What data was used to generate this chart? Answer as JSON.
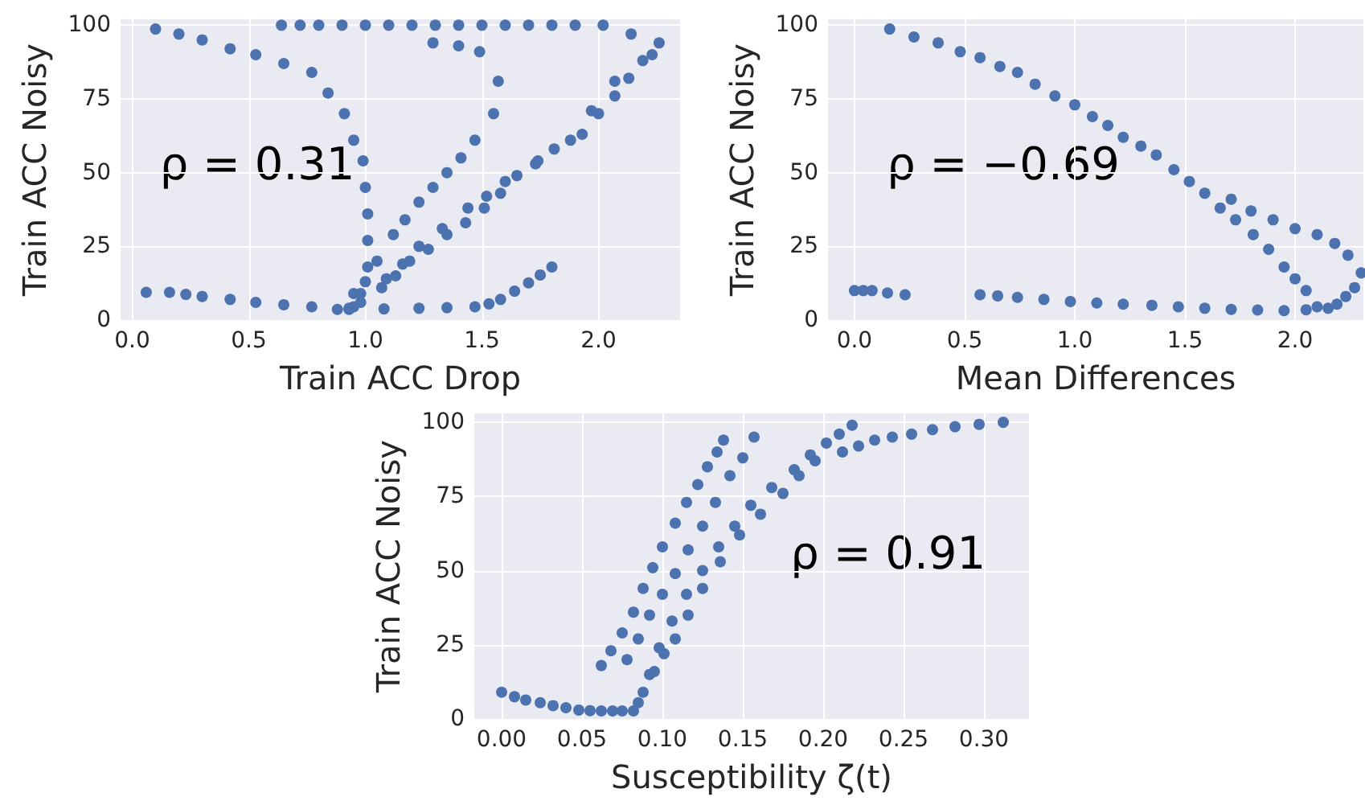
{
  "chart_data": [
    {
      "type": "scatter",
      "xlabel": "Train ACC Drop",
      "ylabel": "Train ACC Noisy",
      "grid": true,
      "marker": "circle",
      "annotations": [
        "ρ = 0.31"
      ],
      "xlim": [
        -0.05,
        2.35
      ],
      "ylim": [
        0,
        102
      ],
      "xticks": [
        {
          "value": 0,
          "label": "0.0"
        },
        {
          "value": 0.5,
          "label": "0.5"
        },
        {
          "value": 1,
          "label": "1.0"
        },
        {
          "value": 1.5,
          "label": "1.5"
        },
        {
          "value": 2,
          "label": "2.0"
        }
      ],
      "yticks": [
        0,
        25,
        50,
        75,
        100
      ],
      "series": [
        {
          "color": "#4c72b0",
          "x": [
            0.1,
            0.2,
            0.3,
            0.42,
            0.53,
            0.65,
            0.77,
            0.84,
            0.91,
            0.95,
            0.99,
            1.0,
            1.01,
            1.01,
            1.01,
            1.0,
            0.98,
            0.93,
            0.64,
            0.72,
            0.8,
            0.9,
            1.0,
            1.1,
            1.2,
            1.3,
            1.4,
            1.5,
            1.6,
            1.7,
            1.8,
            1.9,
            2.02,
            2.14,
            2.26,
            2.23,
            2.19,
            2.13,
            2.07,
            2.0,
            1.93,
            1.81,
            1.73,
            1.65,
            1.58,
            1.51,
            1.43,
            1.35,
            1.27,
            1.19,
            1.13,
            1.07,
            0.95,
            1.29,
            1.4,
            1.49,
            1.57,
            1.55,
            1.47,
            1.41,
            1.35,
            1.29,
            1.23,
            1.17,
            1.12,
            1.05,
            0.95,
            2.07,
            1.97,
            1.88,
            1.74,
            1.6,
            1.52,
            1.44,
            1.33,
            1.23,
            1.16,
            1.09,
            0.98,
            0.06,
            0.16,
            0.23,
            0.3,
            0.42,
            0.53,
            0.65,
            0.77,
            0.88,
            0.93,
            1.08,
            1.23,
            1.35,
            1.47,
            1.53,
            1.58,
            1.64,
            1.7,
            1.75,
            1.8
          ],
          "values": [
            98.7,
            97,
            95,
            92,
            90,
            87,
            84,
            77,
            70,
            61,
            54,
            45,
            36,
            27,
            18,
            13,
            9,
            4,
            100,
            100,
            100,
            100,
            100,
            100,
            100,
            100,
            100,
            100,
            100,
            100,
            100,
            100,
            100,
            97,
            94,
            90,
            88,
            82,
            76,
            70,
            63,
            58,
            53,
            49,
            43,
            38,
            33,
            29,
            24,
            20,
            15,
            11,
            4.5,
            94,
            93,
            91,
            81,
            70,
            61,
            55,
            50,
            45,
            40,
            34,
            29,
            20,
            9,
            81,
            71,
            61,
            54,
            47,
            42,
            38,
            31,
            25,
            19,
            14,
            6,
            9.4,
            9.4,
            8.7,
            8,
            7,
            6,
            5.2,
            4.5,
            3.6,
            3.6,
            3.8,
            4,
            4.2,
            4.5,
            5.5,
            7,
            9.8,
            12.6,
            15.3,
            18
          ]
        }
      ]
    },
    {
      "type": "scatter",
      "xlabel": "Mean Differences",
      "ylabel": "Train ACC Noisy",
      "grid": true,
      "marker": "circle",
      "annotations": [
        "ρ = −0.69"
      ],
      "xlim": [
        -0.12,
        2.31
      ],
      "ylim": [
        0,
        102
      ],
      "xticks": [
        {
          "value": 0,
          "label": "0.0"
        },
        {
          "value": 0.5,
          "label": "0.5"
        },
        {
          "value": 1,
          "label": "1.0"
        },
        {
          "value": 1.5,
          "label": "1.5"
        },
        {
          "value": 2,
          "label": "2.0"
        }
      ],
      "yticks": [
        0,
        25,
        50,
        75,
        100
      ],
      "series": [
        {
          "color": "#4c72b0",
          "x": [
            0.16,
            0.27,
            0.38,
            0.48,
            0.57,
            0.66,
            0.74,
            0.82,
            0.91,
            1.0,
            1.08,
            1.15,
            1.22,
            1.3,
            1.37,
            1.45,
            1.52,
            1.59,
            1.66,
            1.73,
            1.81,
            1.88,
            1.95,
            2.0,
            2.05,
            2.1,
            1.71,
            1.8,
            1.9,
            2.0,
            2.1,
            2.18,
            2.24,
            2.3,
            2.27,
            2.23,
            2.19,
            0.0,
            0.04,
            0.08,
            0.15,
            0.23,
            0.57,
            0.65,
            0.74,
            0.86,
            0.98,
            1.1,
            1.22,
            1.35,
            1.47,
            1.59,
            1.71,
            1.83,
            1.95,
            2.05,
            2.15
          ],
          "values": [
            98.7,
            96,
            94,
            91,
            89,
            86,
            84,
            80,
            76,
            73,
            69,
            66,
            62,
            59,
            56,
            51,
            47,
            43,
            38,
            34,
            29,
            24,
            18,
            14,
            10,
            4.5,
            41,
            37,
            34,
            31,
            29,
            26,
            22,
            16,
            11,
            8,
            5.4,
            10,
            10,
            10,
            9.2,
            8.6,
            8.6,
            8.2,
            7.7,
            7,
            6.3,
            5.8,
            5.4,
            5,
            4.5,
            4,
            3.6,
            3.4,
            3.2,
            3.5,
            4
          ]
        }
      ]
    },
    {
      "type": "scatter",
      "xlabel": "Susceptibility ζ(t)",
      "ylabel": "Train ACC Noisy",
      "grid": true,
      "marker": "circle",
      "annotations": [
        "ρ = 0.91"
      ],
      "xlim": [
        -0.017,
        0.328
      ],
      "ylim": [
        0,
        103
      ],
      "xticks": [
        {
          "value": 0,
          "label": "0.00"
        },
        {
          "value": 0.05,
          "label": "0.05"
        },
        {
          "value": 0.1,
          "label": "0.10"
        },
        {
          "value": 0.15,
          "label": "0.15"
        },
        {
          "value": 0.2,
          "label": "0.20"
        },
        {
          "value": 0.25,
          "label": "0.25"
        },
        {
          "value": 0.3,
          "label": "0.30"
        }
      ],
      "yticks": [
        0,
        25,
        50,
        75,
        100
      ],
      "series": [
        {
          "color": "#4c72b0",
          "x": [
            0.0,
            0.008,
            0.015,
            0.024,
            0.032,
            0.04,
            0.048,
            0.055,
            0.062,
            0.069,
            0.075,
            0.062,
            0.068,
            0.075,
            0.082,
            0.088,
            0.094,
            0.1,
            0.108,
            0.115,
            0.122,
            0.128,
            0.134,
            0.138,
            0.078,
            0.085,
            0.092,
            0.1,
            0.108,
            0.116,
            0.125,
            0.133,
            0.142,
            0.15,
            0.157,
            0.085,
            0.092,
            0.098,
            0.106,
            0.115,
            0.125,
            0.135,
            0.145,
            0.155,
            0.168,
            0.182,
            0.192,
            0.202,
            0.21,
            0.218,
            0.082,
            0.088,
            0.095,
            0.101,
            0.108,
            0.116,
            0.125,
            0.136,
            0.148,
            0.161,
            0.175,
            0.185,
            0.195,
            0.212,
            0.222,
            0.232,
            0.243,
            0.255,
            0.268,
            0.282,
            0.297,
            0.312
          ],
          "values": [
            9,
            7.5,
            6.4,
            5.5,
            4.5,
            3.8,
            3,
            2.8,
            2.7,
            2.7,
            2.7,
            18,
            23,
            29,
            36,
            44,
            51,
            58,
            66,
            73,
            79,
            85,
            90,
            94,
            20,
            27,
            35,
            42,
            49,
            57,
            65,
            73,
            82,
            88,
            95,
            5.5,
            15,
            24,
            33,
            42,
            50,
            58,
            65,
            72,
            78,
            84,
            89,
            93,
            96,
            99,
            2.7,
            9,
            16,
            22,
            27,
            35,
            44,
            53,
            62,
            69,
            76,
            82,
            87,
            90,
            92,
            94,
            95,
            96,
            97.5,
            98.5,
            99.3,
            100
          ]
        }
      ]
    }
  ]
}
